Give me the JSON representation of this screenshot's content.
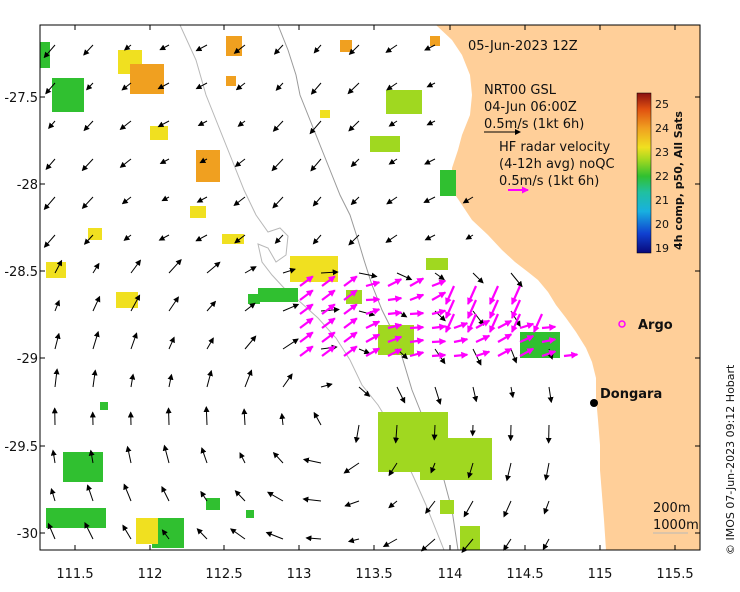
{
  "map": {
    "date_title": "05-Jun-2023 12Z",
    "gsl_title": "NRT00 GSL",
    "gsl_date": "04-Jun 06:00Z",
    "gsl_scale": "0.5m/s (1kt 6h)",
    "hf_title": "HF radar velocity",
    "hf_avg": "(4-12h avg) noQC",
    "hf_scale": "0.5m/s (1kt 6h)",
    "argo_label": "Argo",
    "city_label": "Dongara",
    "contour_200": "200m",
    "contour_1000": "1000m",
    "credit": "© IMOS 07-Jun-2023 09:12 Hobart",
    "colorbar_title": "4h comp, p50, All Sats",
    "colorbar_ticks": [
      "25",
      "24",
      "23",
      "22",
      "21",
      "20",
      "19"
    ],
    "lat_ticks": [
      "-27.5",
      "-28",
      "-28.5",
      "-29",
      "-29.5",
      "-30"
    ],
    "lon_ticks": [
      "111.5",
      "112",
      "112.5",
      "113",
      "113.5",
      "114",
      "114.5",
      "115",
      "115.5"
    ],
    "colors": {
      "land": "#ffcf99",
      "hf_arrow": "#ff00ff",
      "gsl_arrow": "#000000",
      "sst_warm": "#f0a020",
      "sst_mid": "#f0e020",
      "sst_green": "#30c030"
    }
  }
}
